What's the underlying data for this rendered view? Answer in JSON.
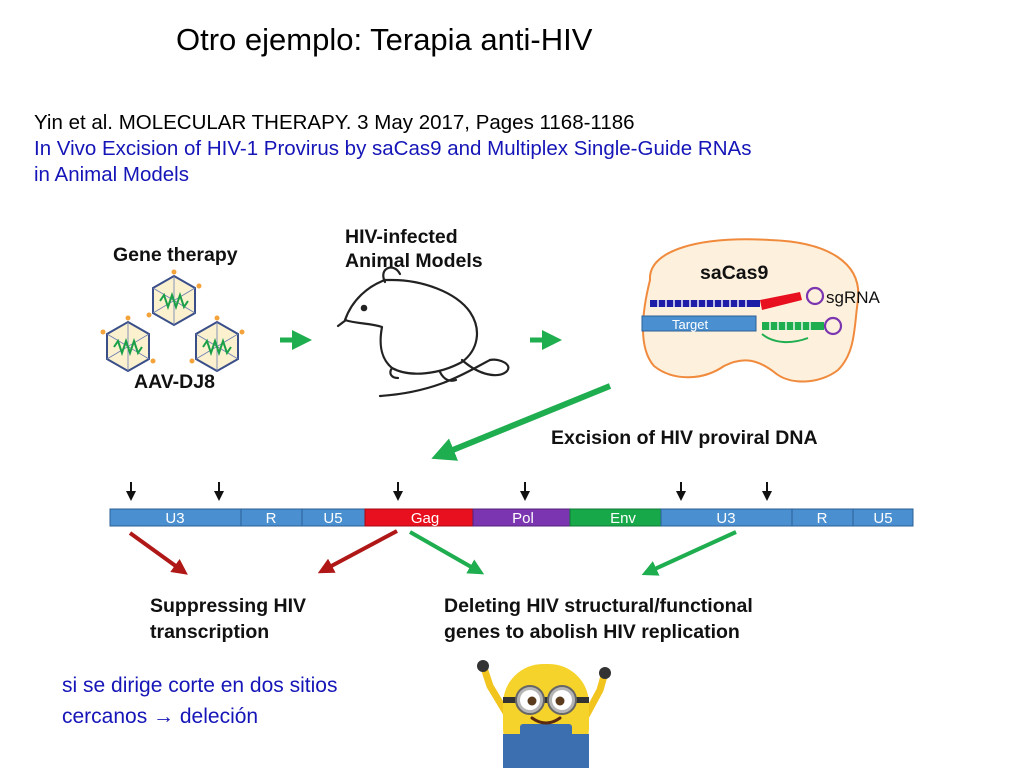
{
  "slide": {
    "title": "Otro ejemplo: Terapia anti-HIV",
    "citation": "Yin et al. MOLECULAR THERAPY. 3 May 2017, Pages 1168-1186",
    "paper_title_line1": "In Vivo Excision of HIV-1 Provirus by saCas9 and Multiplex Single-Guide RNAs",
    "paper_title_line2": "in Animal Models",
    "note_line1": "si se dirige corte en dos sitios",
    "note_line2": "cercanos → deleción"
  },
  "diagram": {
    "gene_therapy_label": "Gene therapy",
    "vector_label": "AAV-DJ8",
    "animal_label_line1": "HIV-infected",
    "animal_label_line2": "Animal Models",
    "cas_label": "saCas9",
    "sgrna_label": "sgRNA",
    "target_label": "Target",
    "excision_label": "Excision of HIV proviral DNA",
    "segments": [
      "U3",
      "R",
      "U5",
      "Gag",
      "Pol",
      "Env",
      "U3",
      "R",
      "U5"
    ],
    "outcome_left_line1": "Suppressing HIV",
    "outcome_left_line2": "transcription",
    "outcome_right_line1": "Deleting HIV structural/functional",
    "outcome_right_line2": "genes to abolish HIV replication"
  },
  "colors": {
    "note_blue": "#1515b8",
    "ltr_blue": "#4a8fd0",
    "gag_red": "#e8101e",
    "pol_purple": "#7b35b0",
    "env_green": "#17a84a",
    "arrow_green": "#1fae4f",
    "arrow_darkred": "#b01818"
  }
}
